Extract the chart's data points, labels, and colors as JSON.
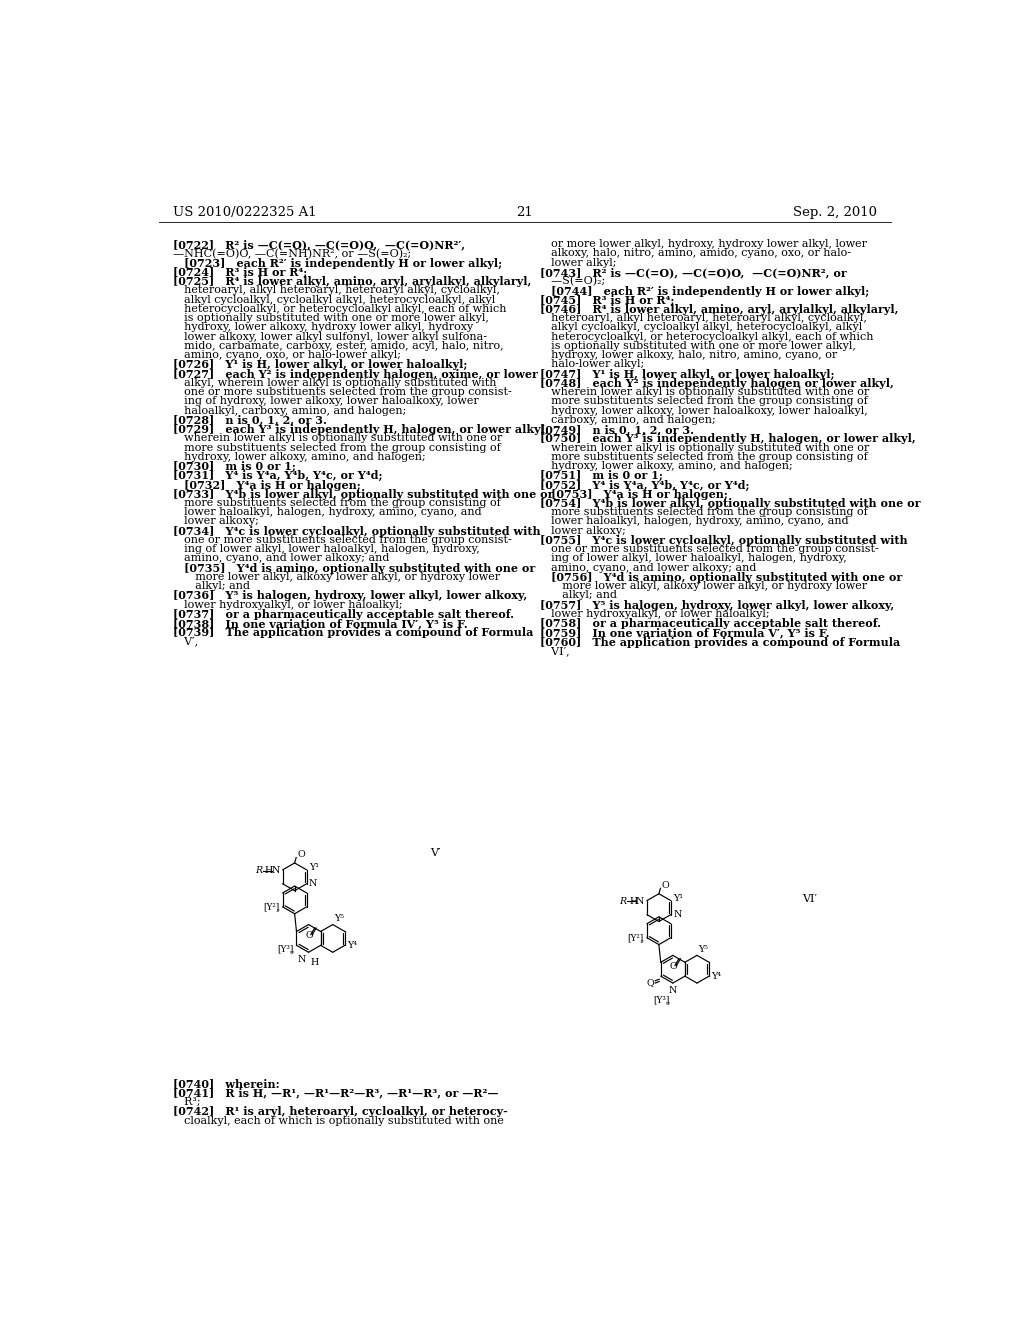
{
  "header_left": "US 2010/0222325 A1",
  "header_right": "Sep. 2, 2010",
  "page_number": "21",
  "bg": "#ffffff",
  "left_col_lines": [
    "[0722] R² is —C(=O), —C(=O)O,  —C(=O)NR²′,",
    "—NHC(=O)O, —C(=NH)NR², or —S(=O)₂;",
    " [0723] each R²′ is independently H or lower alkyl;",
    "[0724] R³ is H or R⁴;",
    "[0725] R⁴ is lower alkyl, amino, aryl, arylalkyl, alkylaryl,",
    " heteroaryl, alkyl heteroaryl, heteroaryl alkyl, cycloalkyl,",
    " alkyl cycloalkyl, cycloalkyl alkyl, heterocycloalkyl, alkyl",
    " heterocycloalkyl, or heterocycloalkyl alkyl, each of which",
    " is optionally substituted with one or more lower alkyl,",
    " hydroxy, lower alkoxy, hydroxy lower alkyl, hydroxy",
    " lower alkoxy, lower alkyl sulfonyl, lower alkyl sulfona-",
    " mido, carbamate, carboxy, ester, amido, acyl, halo, nitro,",
    " amino, cyano, oxo, or halo-lower alkyl;",
    "[0726] Y¹ is H, lower alkyl, or lower haloalkyl;",
    "[0727] each Y² is independently halogen, oxime, or lower",
    " alkyl, wherein lower alkyl is optionally substituted with",
    " one or more substituents selected from the group consist-",
    " ing of hydroxy, lower alkoxy, lower haloalkoxy, lower",
    " haloalkyl, carboxy, amino, and halogen;",
    "[0728] n is 0, 1, 2, or 3.",
    "[0729] each Y³ is independently H, halogen, or lower alkyl,",
    " wherein lower alkyl is optionally substituted with one or",
    " more substituents selected from the group consisting of",
    " hydroxy, lower alkoxy, amino, and halogen;",
    "[0730] m is 0 or 1;",
    "[0731] Y⁴ is Y⁴a, Y⁴b, Y⁴c, or Y⁴d;",
    " [0732] Y⁴a is H or halogen;",
    "[0733] Y⁴b is lower alkyl, optionally substituted with one or",
    " more substituents selected from the group consisting of",
    " lower haloalkyl, halogen, hydroxy, amino, cyano, and",
    " lower alkoxy;",
    "[0734] Y⁴c is lower cycloalkyl, optionally substituted with",
    " one or more substituents selected from the group consist-",
    " ing of lower alkyl, lower haloalkyl, halogen, hydroxy,",
    " amino, cyano, and lower alkoxy; and",
    " [0735] Y⁴d is amino, optionally substituted with one or",
    "  more lower alkyl, alkoxy lower alkyl, or hydroxy lower",
    "  alkyl; and",
    "[0736] Y⁵ is halogen, hydroxy, lower alkyl, lower alkoxy,",
    " lower hydroxyalkyl, or lower haloalkyl;",
    "[0737] or a pharmaceutically acceptable salt thereof.",
    "[0738] In one variation of Formula IV′, Y⁵ is F.",
    "[0739] The application provides a compound of Formula",
    " V′,"
  ],
  "right_col_lines": [
    " or more lower alkyl, hydroxy, hydroxy lower alkyl, lower",
    " alkoxy, halo, nitro, amino, amido, cyano, oxo, or halo-",
    " lower alkyl;",
    "[0743] R² is —C(=O), —C(=O)O,  —C(=O)NR², or",
    " —S(=O)₂;",
    " [0744] each R²′ is independently H or lower alkyl;",
    "[0745] R³ is H or R⁴;",
    "[0746] R⁴ is lower alkyl, amino, aryl, arylalkyl, alkylaryl,",
    " heteroaryl, alkyl heteroaryl, heteroaryl alkyl, cycloalkyl,",
    " alkyl cycloalkyl, cycloalkyl alkyl, heterocycloalkyl, alkyl",
    " heterocycloalkyl, or heterocycloalkyl alkyl, each of which",
    " is optionally substituted with one or more lower alkyl,",
    " hydroxy, lower alkoxy, halo, nitro, amino, cyano, or",
    " halo-lower alkyl;",
    "[0747] Y¹ is H, lower alkyl, or lower haloalkyl;",
    "[0748] each Y² is independently halogen or lower alkyl,",
    " wherein lower alkyl is optionally substituted with one or",
    " more substituents selected from the group consisting of",
    " hydroxy, lower alkoxy, lower haloalkoxy, lower haloalkyl,",
    " carboxy, amino, and halogen;",
    "[0749] n is 0, 1, 2, or 3.",
    "[0750] each Y³ is independently H, halogen, or lower alkyl,",
    " wherein lower alkyl is optionally substituted with one or",
    " more substituents selected from the group consisting of",
    " hydroxy, lower alkoxy, amino, and halogen;",
    "[0751] m is 0 or 1;",
    "[0752] Y⁴ is Y⁴a, Y⁴b, Y⁴c, or Y⁴d;",
    " [0753] Y⁴a is H or halogen;",
    "[0754] Y⁴b is lower alkyl, optionally substituted with one or",
    " more substituents selected from the group consisting of",
    " lower haloalkyl, halogen, hydroxy, amino, cyano, and",
    " lower alkoxy;",
    "[0755] Y⁴c is lower cycloalkyl, optionally substituted with",
    " one or more substituents selected from the group consist-",
    " ing of lower alkyl, lower haloalkyl, halogen, hydroxy,",
    " amino, cyano, and lower alkoxy; and",
    " [0756] Y⁴d is amino, optionally substituted with one or",
    "  more lower alkyl, alkoxy lower alkyl, or hydroxy lower",
    "  alkyl; and",
    "[0757] Y⁵ is halogen, hydroxy, lower alkyl, lower alkoxy,",
    " lower hydroxyalkyl, or lower haloalkyl;",
    "[0758] or a pharmaceutically acceptable salt thereof.",
    "[0759] In one variation of Formula V′, Y⁵ is F.",
    "[0760] The application provides a compound of Formula",
    " VI′,"
  ],
  "bottom_left_lines": [
    "[0740] wherein:",
    "[0741] R is H, —R¹, —R¹—R²—R³, —R¹—R³, or —R²—",
    " R³;",
    "[0742] R¹ is aryl, heteroaryl, cycloalkyl, or heterocy-",
    " cloalkyl, each of which is optionally substituted with one"
  ],
  "struct_V_label": "V′",
  "struct_VI_label": "VI′"
}
